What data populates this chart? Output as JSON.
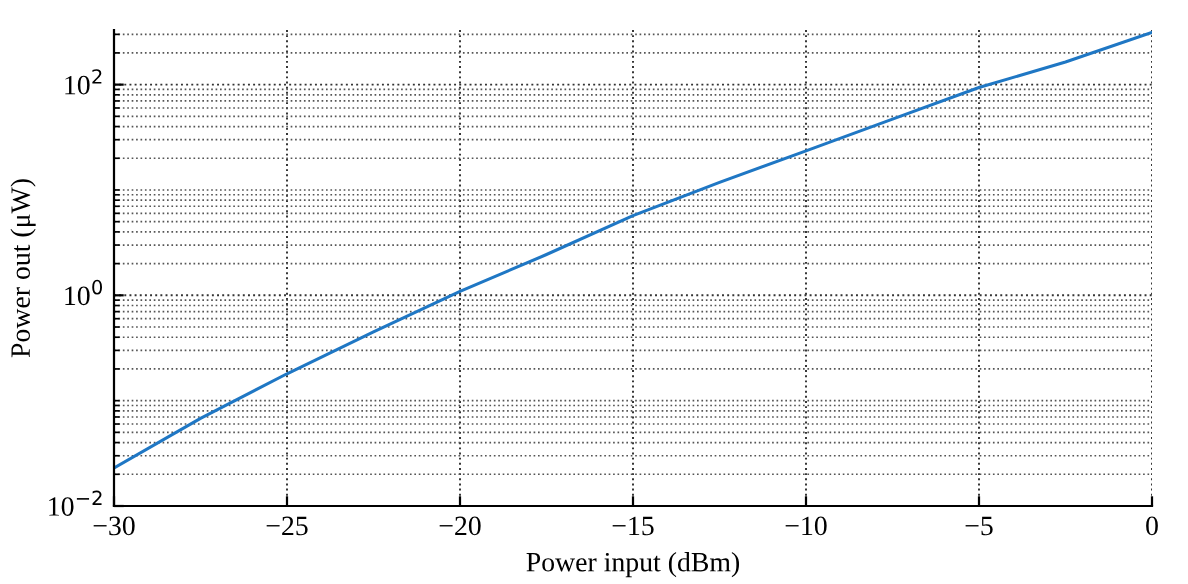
{
  "chart_data": {
    "type": "line",
    "xlabel": "Power input (dBm)",
    "ylabel": "Power out (μW)",
    "log": "y",
    "grid": true,
    "line_style": "solid",
    "marker": "none",
    "x": [
      -30,
      -27.5,
      -25,
      -22.5,
      -20,
      -17.5,
      -15,
      -12.5,
      -10,
      -7.5,
      -5,
      -2.5,
      0
    ],
    "series": [
      {
        "color": "#1f77c4",
        "values": [
          0.023,
          0.068,
          0.18,
          0.45,
          1.09,
          2.44,
          5.7,
          11.8,
          23.5,
          47,
          94,
          164,
          313
        ]
      }
    ],
    "xlim": [
      -30,
      0
    ],
    "xticks": [
      {
        "value": -30,
        "label": "−30"
      },
      {
        "value": -25,
        "label": "−25"
      },
      {
        "value": -20,
        "label": "−20"
      },
      {
        "value": -15,
        "label": "−15"
      },
      {
        "value": -10,
        "label": "−10"
      },
      {
        "value": -5,
        "label": "−5"
      },
      0
    ],
    "ylim": [
      0.01,
      330
    ],
    "yticks": [
      {
        "value": 0.01,
        "label": "10$^{−2}$"
      },
      {
        "value": 1,
        "label": "10$^{0}$"
      },
      {
        "value": 100,
        "label": "10$^{2}$"
      }
    ]
  }
}
